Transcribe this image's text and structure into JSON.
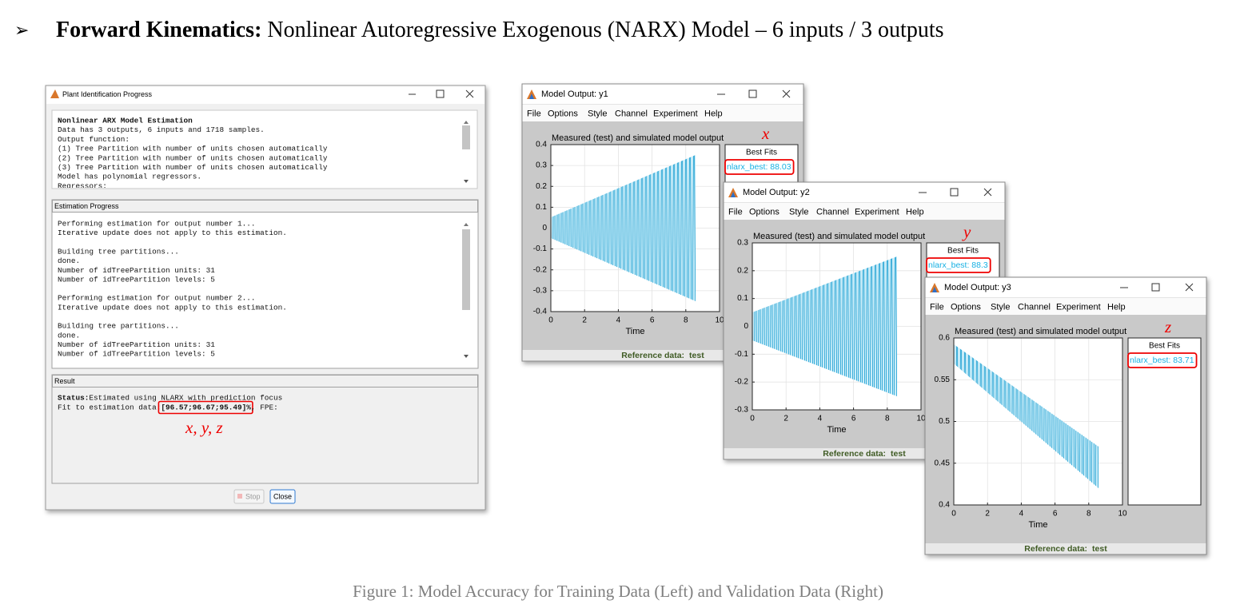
{
  "heading": {
    "bullet": "➢",
    "bold": "Forward Kinematics:",
    "text": " Nonlinear Autoregressive Exogenous (NARX) Model – 6 inputs / 3 outputs"
  },
  "progress_window": {
    "title": "Plant Identification Progress",
    "log_heading": "Nonlinear ARX Model Estimation",
    "log_lines": [
      "Data has 3 outputs, 6 inputs and 1718 samples.",
      "Output function:",
      "(1) Tree Partition with number of units chosen automatically",
      "(2) Tree Partition with number of units chosen automatically",
      "(3) Tree Partition with number of units chosen automatically",
      "Model has polynomial regressors.",
      "Regressors:"
    ],
    "estimation_title": "Estimation Progress",
    "estimation_paragraphs": [
      [
        "Performing estimation for output number 1...",
        "Iterative update does not apply to this estimation."
      ],
      [
        "Building tree partitions...",
        "done.",
        "Number of idTreePartition units: 31",
        "Number of idTreePartition levels: 5"
      ],
      [
        "Performing estimation for output number 2...",
        "Iterative update does not apply to this estimation."
      ],
      [
        "Building tree partitions...",
        "done.",
        "Number of idTreePartition units: 31",
        "Number of idTreePartition levels: 5"
      ]
    ],
    "result_title": "Result",
    "status_label": "Status:",
    "status_text": " Estimated using NLARX with prediction focus",
    "fit_label": "Fit to estimation data: ",
    "fit_value": "[96.57;96.67;95.49]%",
    "fit_tail": ", FPE:",
    "annotation": "x, y, z",
    "buttons": [
      "Stop",
      "Close"
    ]
  },
  "model_windows": [
    {
      "title": "Model Output: y1",
      "menu": [
        "File",
        "Options",
        "Style",
        "Channel",
        "Experiment",
        "Help"
      ],
      "plot_title": "Measured (test) and simulated model output",
      "xlabel": "Time",
      "xlim": [
        0,
        10
      ],
      "xticks": [
        0,
        2,
        4,
        6,
        8,
        10
      ],
      "ylim": [
        -0.4,
        0.4
      ],
      "yticks": [
        -0.4,
        -0.3,
        -0.2,
        -0.1,
        0,
        0.1,
        0.2,
        0.3,
        0.4
      ],
      "legend_title": "Best Fits",
      "fit_label": "nlarx_best: 88.03",
      "annotation": "x",
      "reference_label": "Reference data:",
      "reference_value": "test"
    },
    {
      "title": "Model Output: y2",
      "menu": [
        "File",
        "Options",
        "Style",
        "Channel",
        "Experiment",
        "Help"
      ],
      "plot_title": "Measured (test) and simulated model output",
      "xlabel": "Time",
      "xlim": [
        0,
        10
      ],
      "xticks": [
        0,
        2,
        4,
        6,
        8,
        10
      ],
      "ylim": [
        -0.3,
        0.3
      ],
      "yticks": [
        -0.3,
        -0.2,
        -0.1,
        0,
        0.1,
        0.2,
        0.3
      ],
      "legend_title": "Best Fits",
      "fit_label": "nlarx_best: 88.3",
      "annotation": "y",
      "reference_label": "Reference data:",
      "reference_value": "test"
    },
    {
      "title": "Model Output: y3",
      "menu": [
        "File",
        "Options",
        "Style",
        "Channel",
        "Experiment",
        "Help"
      ],
      "plot_title": "Measured (test) and simulated model output",
      "xlabel": "Time",
      "xlim": [
        0,
        10
      ],
      "xticks": [
        0,
        2,
        4,
        6,
        8,
        10
      ],
      "ylim": [
        0.4,
        0.6
      ],
      "yticks": [
        0.4,
        0.45,
        0.5,
        0.55,
        0.6
      ],
      "legend_title": "Best Fits",
      "fit_label": "nlarx_best: 83.71",
      "annotation": "z",
      "reference_label": "Reference data:",
      "reference_value": "test"
    }
  ],
  "caption": "Figure 1: Model Accuracy for Training Data (Left) and Validation Data (Right)"
}
